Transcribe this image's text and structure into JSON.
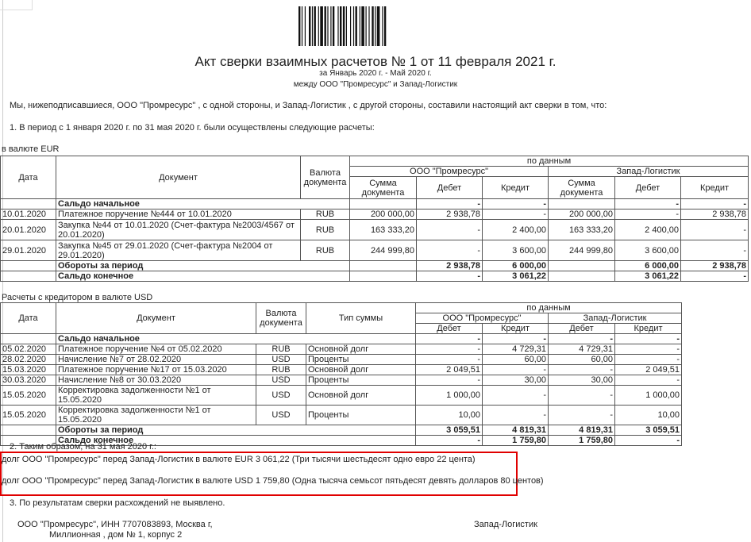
{
  "header": {
    "title": "Акт сверки взаимных расчетов № 1 от 11 февраля 2021 г.",
    "period": "за Январь 2020 г. - Май 2020 г.",
    "parties": "между ООО \"Промресурс\" и Запад-Логистик"
  },
  "intro": "Мы, нижеподписавшиеся,  ООО \"Промресурс\" , с одной стороны, и  Запад-Логистик , с другой стороны, составили настоящий акт сверки в том, что:",
  "point1": "1. В период с 1 января 2020 г. по 31 мая 2020 г. были осуществлены следующие расчеты:",
  "eur": {
    "caption": "в валюте EUR",
    "h_date": "Дата",
    "h_doc": "Документ",
    "h_cur": "Валюта документа",
    "h_by": "по данным",
    "h_org1": "ООО \"Промресурс\"",
    "h_org2": "Запад-Логистик",
    "h_sum": "Сумма документа",
    "h_debit": "Дебет",
    "h_credit": "Кредит",
    "opening": {
      "label": "Сальдо начальное",
      "values": [
        "",
        "-",
        "-",
        "",
        "-",
        "-"
      ]
    },
    "rows": [
      {
        "date": "10.01.2020",
        "doc": "Платежное поручение №444 от 10.01.2020",
        "cur": "RUB",
        "values": [
          "200 000,00",
          "2 938,78",
          "-",
          "200 000,00",
          "-",
          "2 938,78"
        ]
      },
      {
        "date": "20.01.2020",
        "doc": "Закупка №44 от 10.01.2020 (Счет-фактура №2003/4567 от 20.01.2020)",
        "cur": "RUB",
        "values": [
          "163 333,20",
          "-",
          "2 400,00",
          "163 333,20",
          "2 400,00",
          "-"
        ]
      },
      {
        "date": "29.01.2020",
        "doc": "Закупка №45 от 29.01.2020 (Счет-фактура №2004 от 29.01.2020)",
        "cur": "RUB",
        "values": [
          "244 999,80",
          "-",
          "3 600,00",
          "244 999,80",
          "3 600,00",
          "-"
        ]
      }
    ],
    "turnover": {
      "label": "Обороты за период",
      "values": [
        "",
        "2 938,78",
        "6 000,00",
        "",
        "6 000,00",
        "2 938,78"
      ]
    },
    "closing": {
      "label": "Сальдо конечное",
      "values": [
        "",
        "-",
        "3 061,22",
        "",
        "3 061,22",
        "-"
      ]
    }
  },
  "usd": {
    "caption": "Расчеты с кредитором в валюте USD",
    "h_date": "Дата",
    "h_doc": "Документ",
    "h_cur": "Валюта документа",
    "h_type": "Тип суммы",
    "h_by": "по данным",
    "h_org1": "ООО \"Промресурс\"",
    "h_org2": "Запад-Логистик",
    "h_debit": "Дебет",
    "h_credit": "Кредит",
    "opening": {
      "label": "Сальдо начальное",
      "values": [
        "-",
        "-",
        "-",
        "-"
      ]
    },
    "rows": [
      {
        "date": "05.02.2020",
        "doc": "Платежное поручение №4 от 05.02.2020",
        "cur": "RUB",
        "type": "Основной долг",
        "values": [
          "-",
          "4 729,31",
          "4 729,31",
          "-"
        ]
      },
      {
        "date": "28.02.2020",
        "doc": "Начисление №7 от 28.02.2020",
        "cur": "USD",
        "type": "Проценты",
        "values": [
          "-",
          "60,00",
          "60,00",
          "-"
        ]
      },
      {
        "date": "15.03.2020",
        "doc": "Платежное поручение №17 от 15.03.2020",
        "cur": "RUB",
        "type": "Основной долг",
        "values": [
          "2 049,51",
          "-",
          "-",
          "2 049,51"
        ]
      },
      {
        "date": "30.03.2020",
        "doc": "Начисление №8 от 30.03.2020",
        "cur": "USD",
        "type": "Проценты",
        "values": [
          "-",
          "30,00",
          "30,00",
          "-"
        ]
      },
      {
        "date": "15.05.2020",
        "doc": "Корректировка задолженности №1 от 15.05.2020",
        "cur": "USD",
        "type": "Основной долг",
        "values": [
          "1 000,00",
          "-",
          "-",
          "1 000,00"
        ]
      },
      {
        "date": "15.05.2020",
        "doc": "Корректировка задолженности №1 от 15.05.2020",
        "cur": "USD",
        "type": "Проценты",
        "values": [
          "10,00",
          "-",
          "-",
          "10,00"
        ]
      }
    ],
    "turnover": {
      "label": "Обороты за период",
      "values": [
        "3 059,51",
        "4 819,31",
        "4 819,31",
        "3 059,51"
      ]
    },
    "closing": {
      "label": "Сальдо конечное",
      "values": [
        "-",
        "1 759,80",
        "1 759,80",
        "-"
      ]
    }
  },
  "point2": "2. Таким образом, на 31 мая 2020 г.:",
  "debt_eur": "долг ООО \"Промресурс\" перед Запад-Логистик в валюте EUR 3 061,22 (Три тысячи шестьдесят одно евро 22 цента)",
  "debt_usd": "долг ООО \"Промресурс\" перед Запад-Логистик в валюте USD 1 759,80 (Одна тысяча семьсот пятьдесят девять долларов 80 центов)",
  "point3": "3. По результатам сверки расхождений не выявлено.",
  "sign": {
    "org1_line1": "ООО \"Промресурс\", ИНН 7707083893, Москва г,",
    "org1_line2": "Миллионная , дом № 1, корпус 2",
    "org2": "Запад-Логистик"
  },
  "colors": {
    "highlight": "#e00000",
    "border": "#555555"
  }
}
